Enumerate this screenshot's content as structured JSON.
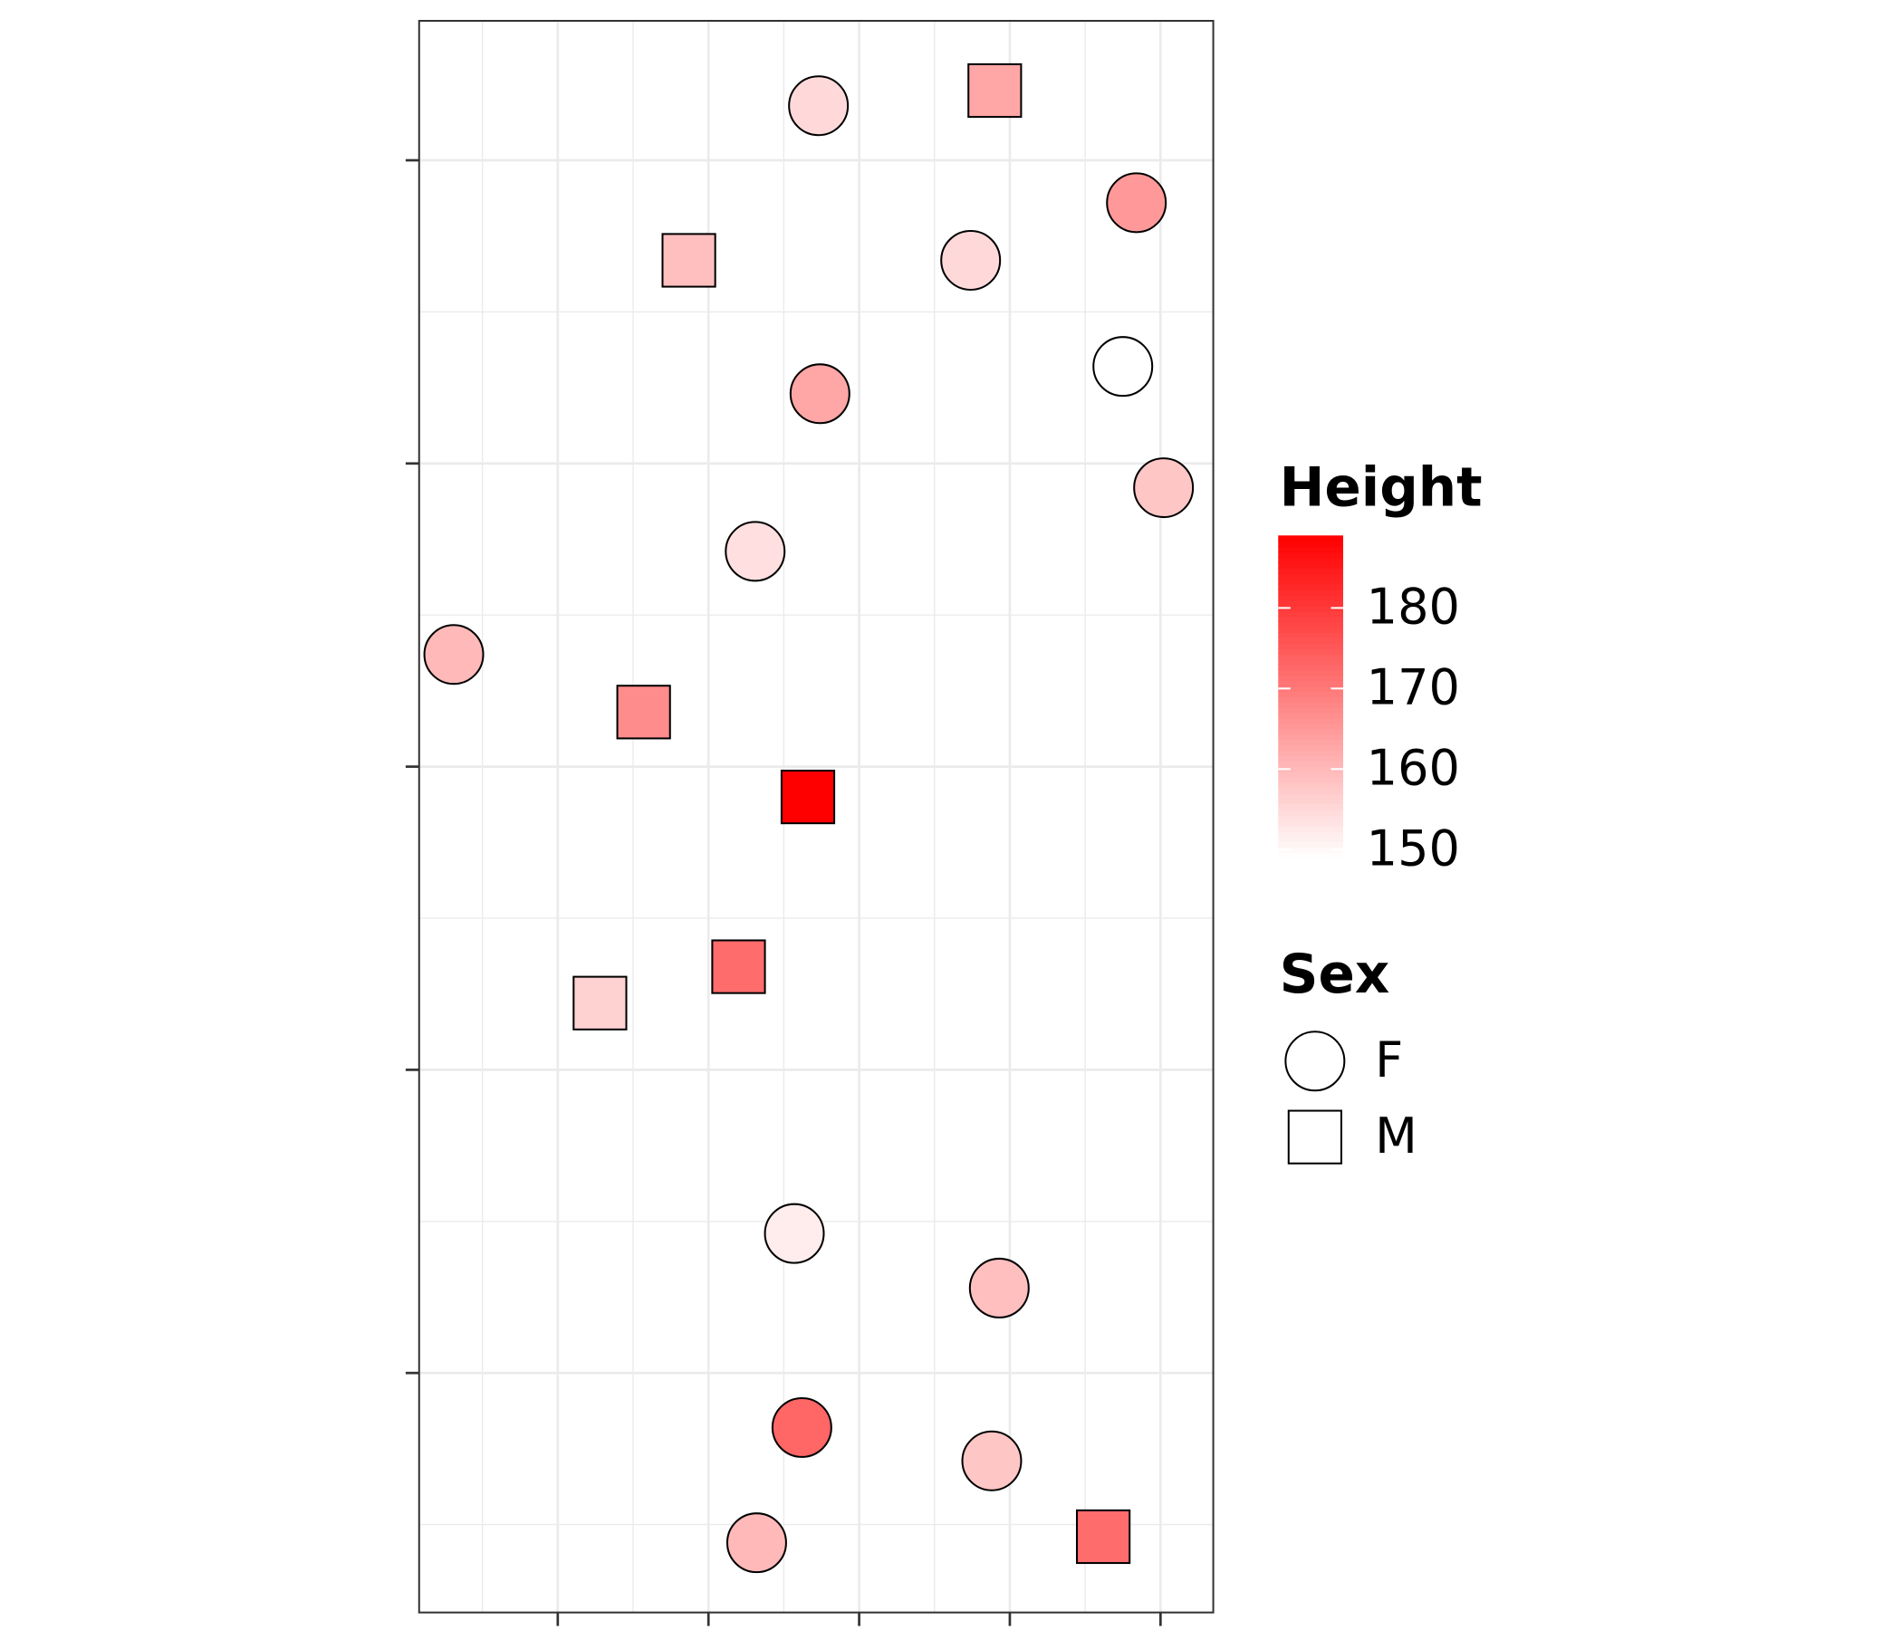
{
  "chart_data": {
    "type": "scatter",
    "xlim": [
      0.08,
      5.35
    ],
    "xticks": [
      1,
      2,
      3,
      4,
      5
    ],
    "ylim": [
      0.21,
      5.46
    ],
    "yticks": [
      1,
      2,
      3,
      4,
      5
    ],
    "grid": true,
    "series": [
      {
        "name": "F",
        "shape": "circle",
        "x": [
          2.73,
          4.84,
          3.74,
          4.75,
          2.74,
          5.02,
          2.31,
          0.31,
          2.57,
          3.93,
          2.62,
          3.88,
          2.32
        ],
        "y": [
          5.18,
          4.86,
          4.67,
          4.32,
          4.23,
          3.92,
          3.71,
          3.37,
          1.46,
          1.28,
          0.82,
          0.71,
          0.44
        ],
        "height": [
          155,
          165,
          155,
          149,
          163,
          158,
          154,
          160,
          152,
          159,
          173,
          158,
          160
        ]
      },
      {
        "name": "M",
        "shape": "square",
        "x": [
          3.9,
          1.87,
          1.57,
          2.66,
          2.2,
          1.28,
          4.62
        ],
        "y": [
          5.23,
          4.67,
          3.18,
          2.9,
          2.34,
          2.22,
          0.46
        ],
        "height": [
          163,
          159,
          167,
          189,
          172,
          156,
          172
        ]
      }
    ],
    "color_legend": {
      "title": "Height",
      "lim": [
        149,
        189
      ],
      "ticks": [
        150,
        160,
        170,
        180
      ],
      "low": "#ffffff",
      "high": "#ff0000"
    },
    "shape_legend": {
      "title": "Sex"
    }
  }
}
